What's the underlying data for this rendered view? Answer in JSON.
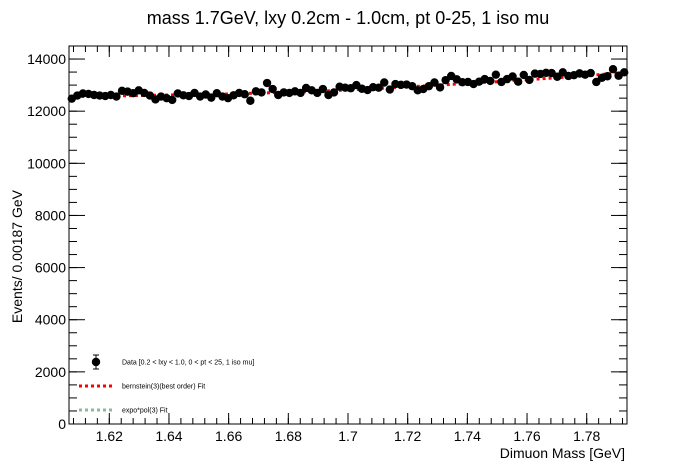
{
  "chart_data": {
    "type": "scatter",
    "title": "mass 1.7GeV, lxy 0.2cm - 1.0cm, pt 0-25, 1 iso mu",
    "xlabel": "Dimuon Mass [GeV]",
    "ylabel": "Events/ 0.00187 GeV",
    "xlim": [
      1.6065,
      1.7935
    ],
    "ylim": [
      0,
      14500
    ],
    "x_ticks": [
      1.62,
      1.64,
      1.66,
      1.68,
      1.7,
      1.72,
      1.74,
      1.76,
      1.78
    ],
    "x_tick_labels": [
      "1.62",
      "1.64",
      "1.66",
      "1.68",
      "1.7",
      "1.72",
      "1.74",
      "1.76",
      "1.78"
    ],
    "y_ticks": [
      0,
      2000,
      4000,
      6000,
      8000,
      10000,
      12000,
      14000
    ],
    "y_tick_labels": [
      "0",
      "2000",
      "4000",
      "6000",
      "8000",
      "10000",
      "12000",
      "14000"
    ],
    "grid": false,
    "legend_position": "bottom-left",
    "series": [
      {
        "name": "Data [0.2 < lxy < 1.0, 0 < pt < 25, 1 iso mu]",
        "kind": "points",
        "color": "#000000",
        "x": [
          1.60743,
          1.6093,
          1.61117,
          1.61304,
          1.61491,
          1.61678,
          1.61865,
          1.62052,
          1.62239,
          1.62426,
          1.62613,
          1.628,
          1.62987,
          1.63174,
          1.63361,
          1.63548,
          1.63735,
          1.63922,
          1.64109,
          1.64296,
          1.64483,
          1.6467,
          1.64857,
          1.65044,
          1.65231,
          1.65418,
          1.65605,
          1.65792,
          1.65979,
          1.66166,
          1.66353,
          1.6654,
          1.66727,
          1.66914,
          1.67101,
          1.67288,
          1.67475,
          1.67662,
          1.67849,
          1.68036,
          1.68223,
          1.6841,
          1.68597,
          1.68784,
          1.68971,
          1.69158,
          1.69345,
          1.69532,
          1.69719,
          1.69906,
          1.70093,
          1.7028,
          1.70467,
          1.70654,
          1.70841,
          1.71028,
          1.71215,
          1.71402,
          1.71589,
          1.71776,
          1.71963,
          1.7215,
          1.72337,
          1.72524,
          1.72711,
          1.72898,
          1.73085,
          1.73272,
          1.73459,
          1.73646,
          1.73833,
          1.7402,
          1.74207,
          1.74394,
          1.74581,
          1.74768,
          1.74955,
          1.75142,
          1.75329,
          1.75516,
          1.75703,
          1.7589,
          1.76077,
          1.76264,
          1.76451,
          1.76638,
          1.76825,
          1.77012,
          1.77199,
          1.77386,
          1.77573,
          1.7776,
          1.77947,
          1.78134,
          1.78321,
          1.78508,
          1.78695,
          1.78882,
          1.79069,
          1.79256
        ],
        "y": [
          12480,
          12600,
          12680,
          12660,
          12620,
          12600,
          12580,
          12620,
          12560,
          12780,
          12750,
          12690,
          12800,
          12700,
          12600,
          12450,
          12560,
          12500,
          12430,
          12680,
          12610,
          12580,
          12700,
          12560,
          12640,
          12520,
          12690,
          12560,
          12500,
          12610,
          12700,
          12650,
          12400,
          12760,
          12720,
          13080,
          12850,
          12620,
          12720,
          12700,
          12760,
          12700,
          12890,
          12800,
          12700,
          12850,
          12620,
          12720,
          12940,
          12900,
          12880,
          13000,
          12860,
          12810,
          12920,
          12900,
          13100,
          12830,
          13040,
          13010,
          13020,
          12960,
          12800,
          12850,
          12960,
          13100,
          12910,
          13190,
          13350,
          13220,
          13110,
          13120,
          13040,
          13130,
          13230,
          13160,
          13400,
          13120,
          13230,
          13330,
          13130,
          13390,
          13200,
          13440,
          13430,
          13470,
          13460,
          13320,
          13490,
          13350,
          13380,
          13450,
          13400,
          13460,
          13120,
          13280,
          13340,
          13610,
          13360,
          13490
        ]
      },
      {
        "name": "bernstein(3)(best order) Fit",
        "kind": "line",
        "style": "dashed",
        "color": "#ff0000",
        "x": [
          1.6065,
          1.63,
          1.66,
          1.69,
          1.72,
          1.75,
          1.78,
          1.7935
        ],
        "y": [
          12560,
          12600,
          12660,
          12760,
          12930,
          13130,
          13360,
          13490
        ]
      },
      {
        "name": "expo*pol(3) Fit",
        "kind": "line",
        "style": "dashed",
        "color": "#88bb99",
        "x": [],
        "y": []
      }
    ]
  }
}
